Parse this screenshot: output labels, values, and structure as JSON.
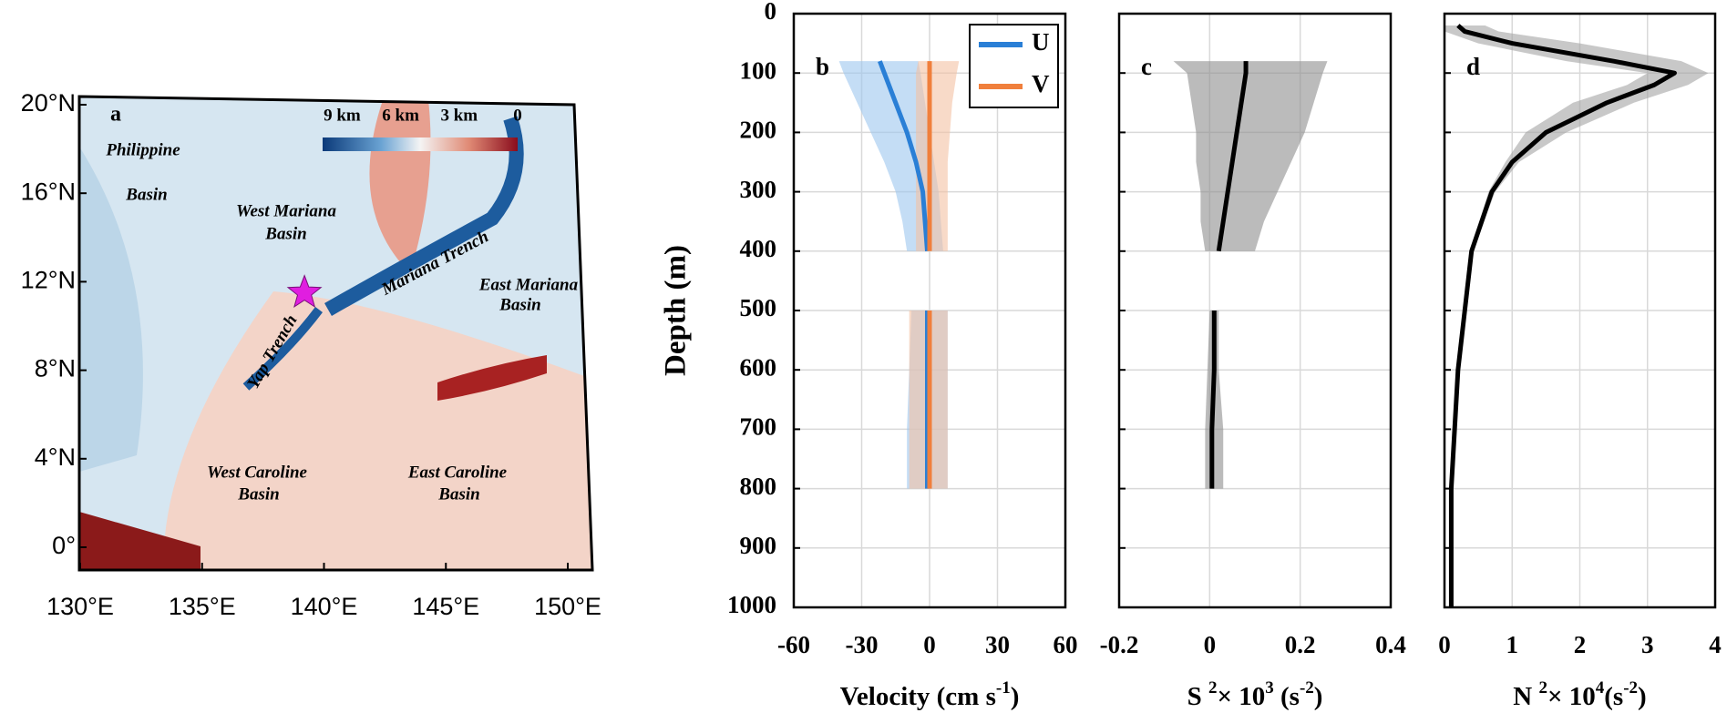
{
  "chart_data": [
    {
      "type": "map",
      "label": "a",
      "xlim": [
        130,
        150
      ],
      "ylim": [
        0,
        20
      ],
      "xticks": [
        {
          "value": 130,
          "label": "130°E"
        },
        {
          "value": 135,
          "label": "135°E"
        },
        {
          "value": 140,
          "label": "140°E"
        },
        {
          "value": 145,
          "label": "145°E"
        },
        {
          "value": 150,
          "label": "150°E"
        }
      ],
      "yticks": [
        {
          "value": 0,
          "label": "0°"
        },
        {
          "value": 4,
          "label": "4°N"
        },
        {
          "value": 8,
          "label": "8°N"
        },
        {
          "value": 12,
          "label": "12°N"
        },
        {
          "value": 16,
          "label": "16°N"
        },
        {
          "value": 20,
          "label": "20°N"
        }
      ],
      "colorbar": {
        "lim": [
          10,
          0
        ],
        "ticks": [
          {
            "value": 9,
            "label": "9 km"
          },
          {
            "value": 6,
            "label": "6 km"
          },
          {
            "value": 3,
            "label": "3 km"
          },
          0
        ]
      },
      "site": {
        "lon": 139.2,
        "lat": 11.5,
        "color": "#e01ee0"
      },
      "annotations": [
        "Philippine",
        "Basin",
        "West Mariana",
        "Basin",
        "Mariana Trench",
        "East Mariana",
        "Basin",
        "Yap Trench",
        "West Caroline",
        "Basin",
        "East Caroline",
        "Basin"
      ]
    },
    {
      "type": "profile",
      "label": "b",
      "xlabel": [
        "Velocity (cm s",
        "-1",
        ")"
      ],
      "ylabel": "Depth (m)",
      "xlim": [
        -60,
        60
      ],
      "xticks": [
        -60,
        -30,
        0,
        30,
        60
      ],
      "ylim": [
        0,
        1000
      ],
      "yticks": [
        0,
        100,
        200,
        300,
        400,
        500,
        600,
        700,
        800,
        900,
        1000
      ],
      "grid": true,
      "y": [
        80,
        100,
        150,
        200,
        250,
        300,
        350,
        400,
        450,
        500,
        600,
        700,
        800
      ],
      "series": [
        {
          "name": "U",
          "color": "#2a7fd6",
          "fill_color": "#9cc6ee",
          "values": [
            -22,
            -20,
            -15,
            -10,
            -6,
            -3,
            -2,
            -1,
            null,
            -1,
            -1,
            -1,
            -1
          ],
          "lower": [
            -40,
            -38,
            -32,
            -26,
            -20,
            -15,
            -12,
            -10,
            null,
            -8,
            -9,
            -10,
            -10
          ],
          "upper": [
            -5,
            -4,
            -2,
            0,
            2,
            4,
            5,
            6,
            null,
            8,
            8,
            8,
            8
          ]
        },
        {
          "name": "V",
          "color": "#f07f3c",
          "fill_color": "#f3c2a4",
          "values": [
            0,
            0,
            0,
            0,
            0,
            0,
            0,
            0,
            null,
            0,
            0,
            0,
            0
          ],
          "lower": [
            -5,
            -6,
            -6,
            -6,
            -6,
            -6,
            -6,
            -6,
            null,
            -9,
            -9,
            -9,
            -9
          ],
          "upper": [
            13,
            12,
            10,
            9,
            8,
            8,
            8,
            8,
            null,
            8,
            8,
            8,
            8
          ]
        }
      ]
    },
    {
      "type": "profile",
      "label": "c",
      "xlabel": [
        "S ",
        "2",
        "× 10",
        "3",
        " (s",
        "-2",
        ")"
      ],
      "xlim": [
        -0.2,
        0.4
      ],
      "xticks": [
        -0.2,
        0,
        0.2,
        0.4
      ],
      "ylim": [
        0,
        1000
      ],
      "yticks": [
        0,
        100,
        200,
        300,
        400,
        500,
        600,
        700,
        800,
        900,
        1000
      ],
      "grid": true,
      "y": [
        80,
        100,
        150,
        200,
        250,
        300,
        350,
        400,
        450,
        500,
        600,
        700,
        800
      ],
      "series": [
        {
          "color": "#000000",
          "fill_color": "#8e8e8e",
          "values": [
            0.08,
            0.08,
            0.07,
            0.06,
            0.05,
            0.04,
            0.03,
            0.02,
            null,
            0.01,
            0.01,
            0.005,
            0.005
          ],
          "lower": [
            -0.08,
            -0.05,
            -0.04,
            -0.03,
            -0.03,
            -0.02,
            -0.02,
            -0.01,
            null,
            0,
            -0.005,
            -0.01,
            -0.01
          ],
          "upper": [
            0.26,
            0.25,
            0.23,
            0.21,
            0.18,
            0.15,
            0.12,
            0.1,
            null,
            0.02,
            0.02,
            0.03,
            0.03
          ]
        }
      ]
    },
    {
      "type": "profile",
      "label": "d",
      "xlabel": [
        "N ",
        "2",
        "× 10",
        "4",
        "(s",
        "-2",
        ")"
      ],
      "xlim": [
        0,
        4
      ],
      "xticks": [
        0,
        1,
        2,
        3,
        4
      ],
      "ylim": [
        0,
        1000
      ],
      "yticks": [
        0,
        100,
        200,
        300,
        400,
        500,
        600,
        700,
        800,
        900,
        1000
      ],
      "grid": true,
      "y": [
        20,
        30,
        50,
        80,
        100,
        120,
        150,
        200,
        250,
        300,
        400,
        500,
        600,
        800,
        1000
      ],
      "series": [
        {
          "color": "#000000",
          "fill_color": "#a3a3a3",
          "values": [
            0.2,
            0.3,
            1.0,
            2.5,
            3.4,
            3.1,
            2.4,
            1.5,
            1.0,
            0.7,
            0.4,
            0.3,
            0.2,
            0.1,
            0.1
          ],
          "lower": [
            0,
            0,
            0.5,
            1.8,
            3.0,
            2.7,
            1.9,
            1.2,
            0.9,
            0.65,
            0.38,
            0.28,
            0.18,
            0.1,
            0.1
          ],
          "upper": [
            0.6,
            0.8,
            2.0,
            3.5,
            3.9,
            3.6,
            2.8,
            1.8,
            1.1,
            0.75,
            0.42,
            0.32,
            0.22,
            0.1,
            0.1
          ]
        }
      ]
    }
  ]
}
